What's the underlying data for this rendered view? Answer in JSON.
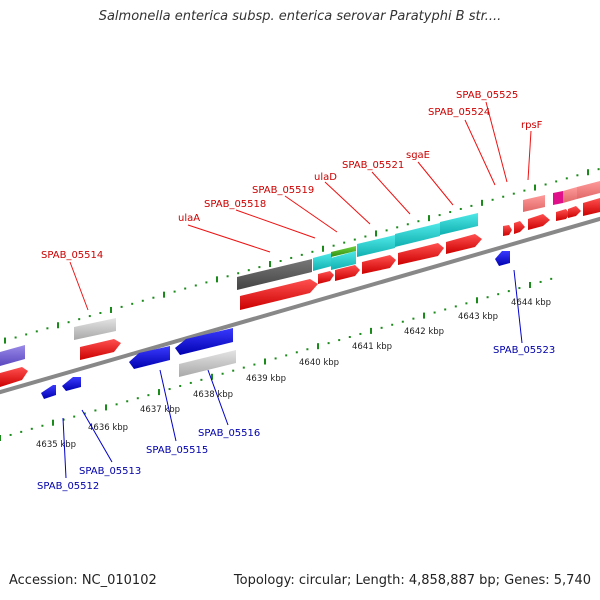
{
  "title": "Salmonella enterica subsp. enterica serovar Paratyphi B str....",
  "footer": {
    "accession": "Accession: NC_010102",
    "topology": "Topology: circular; Length: 4,858,887 bp; Genes: 5,740"
  },
  "colors": {
    "forward_gene": "#ff0000",
    "reverse_gene": "#1010e0",
    "pseudo_gene": "#c0c0c0",
    "highlight_gene": "#20d0d0",
    "label_top": "#cc0000",
    "label_bottom": "#0000aa",
    "tick": "#1a8a1a",
    "backbone": "#888888"
  },
  "kbp_ticks": [
    "4635 kbp",
    "4636 kbp",
    "4637 kbp",
    "4638 kbp",
    "4639 kbp",
    "4640 kbp",
    "4641 kbp",
    "4642 kbp",
    "4643 kbp",
    "4644 kbp"
  ],
  "top_labels": [
    "SPAB_05514",
    "ulaA",
    "SPAB_05518",
    "SPAB_05519",
    "ulaD",
    "SPAB_05521",
    "sgaE",
    "SPAB_05524",
    "SPAB_05525",
    "rpsF"
  ],
  "bottom_labels": [
    "SPAB_05512",
    "SPAB_05513",
    "SPAB_05515",
    "SPAB_05516",
    "SPAB_05523"
  ]
}
